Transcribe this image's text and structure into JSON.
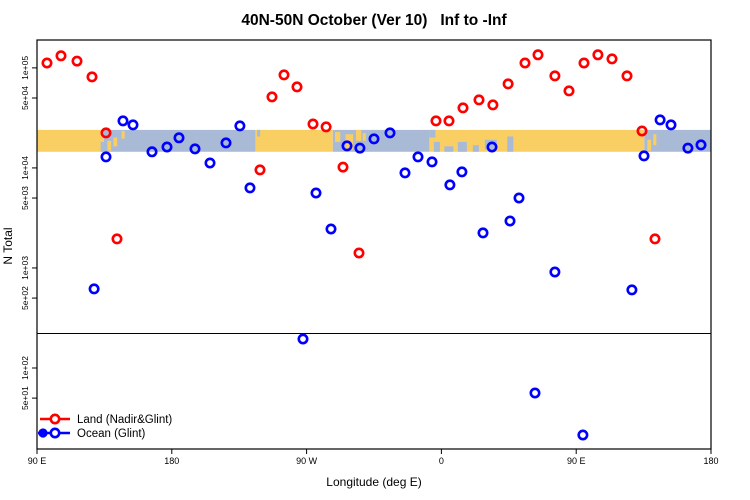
{
  "chart_data": {
    "type": "scatter",
    "title": "40N-50N October (Ver 10)   Inf to -Inf",
    "xlabel": "Longitude (deg E)",
    "ylabel": "N Total",
    "grid": false,
    "x_axis": {
      "min": 90,
      "max": 540,
      "ticks": [
        {
          "pos": 90,
          "label": "90 E"
        },
        {
          "pos": 180,
          "label": "180"
        },
        {
          "pos": 270,
          "label": "90 W"
        },
        {
          "pos": 360,
          "label": "0"
        },
        {
          "pos": 450,
          "label": "90 E"
        },
        {
          "pos": 540,
          "label": "180"
        }
      ]
    },
    "y_axis": {
      "scale": "log",
      "top_value": 190000,
      "bottom_value": 15.5,
      "ticks": [
        {
          "value": 100000,
          "label": "1e+05"
        },
        {
          "value": 50000,
          "label": "5e+04"
        },
        {
          "value": 10000,
          "label": "1e+04"
        },
        {
          "value": 5000,
          "label": "5e+03"
        },
        {
          "value": 1000,
          "label": "1e+03"
        },
        {
          "value": 500,
          "label": "5e+02"
        },
        {
          "value": 100,
          "label": "1e+02"
        },
        {
          "value": 50,
          "label": "5e+01"
        }
      ]
    },
    "hline_value": 221,
    "map_band": {
      "value_top": 24000,
      "value_bottom": 14500,
      "land_color": "#F9CF64",
      "ocean_color": "#A9BAD7",
      "segments": [
        {
          "type": "land",
          "from": 90,
          "to": 134.7
        },
        {
          "type": "ocean",
          "from": 134.7,
          "to": 236
        },
        {
          "type": "land",
          "from": 236,
          "to": 287.5
        },
        {
          "type": "ocean",
          "from": 287.5,
          "to": 352
        },
        {
          "type": "land",
          "from": 352,
          "to": 495.5
        },
        {
          "type": "ocean",
          "from": 495.5,
          "to": 540
        }
      ],
      "details": [
        {
          "type": "ocean",
          "from": 132.5,
          "to": 134.7,
          "top": 0.55,
          "bottom": 1
        },
        {
          "type": "land",
          "from": 137,
          "to": 139.5,
          "top": 0.5,
          "bottom": 0.95
        },
        {
          "type": "land",
          "from": 141,
          "to": 143.5,
          "top": 0.35,
          "bottom": 0.75
        },
        {
          "type": "land",
          "from": 146.5,
          "to": 148.5,
          "top": 0.05,
          "bottom": 0.4
        },
        {
          "type": "ocean",
          "from": 237,
          "to": 239,
          "top": 0,
          "bottom": 0.3
        },
        {
          "type": "land",
          "from": 289,
          "to": 292.5,
          "top": 0.1,
          "bottom": 0.55
        },
        {
          "type": "land",
          "from": 296,
          "to": 301,
          "top": 0.2,
          "bottom": 0.9
        },
        {
          "type": "land",
          "from": 303,
          "to": 306.5,
          "top": 0,
          "bottom": 0.5
        },
        {
          "type": "land",
          "from": 307.5,
          "to": 309.5,
          "top": 0.15,
          "bottom": 0.5
        },
        {
          "type": "ocean",
          "from": 352,
          "to": 356,
          "top": 0,
          "bottom": 0.35
        },
        {
          "type": "ocean",
          "from": 355,
          "to": 359,
          "top": 0.55,
          "bottom": 1
        },
        {
          "type": "ocean",
          "from": 362,
          "to": 368,
          "top": 0.75,
          "bottom": 1
        },
        {
          "type": "ocean",
          "from": 371,
          "to": 377,
          "top": 0.55,
          "bottom": 1
        },
        {
          "type": "ocean",
          "from": 381,
          "to": 385,
          "top": 0.7,
          "bottom": 1
        },
        {
          "type": "ocean",
          "from": 389,
          "to": 397,
          "top": 0.45,
          "bottom": 0.9
        },
        {
          "type": "ocean",
          "from": 404,
          "to": 408,
          "top": 0.3,
          "bottom": 1
        },
        {
          "type": "land",
          "from": 497.5,
          "to": 500,
          "top": 0.45,
          "bottom": 0.95
        },
        {
          "type": "land",
          "from": 501.5,
          "to": 503.5,
          "top": 0.2,
          "bottom": 0.7
        }
      ]
    },
    "series": [
      {
        "name": "Land (Nadir&Glint)",
        "color": "#FF0000",
        "points": [
          [
            96.7,
            112000
          ],
          [
            106.0,
            132000
          ],
          [
            116.7,
            117000
          ],
          [
            126.7,
            81300
          ],
          [
            136.1,
            22400
          ],
          [
            143.4,
            1950
          ],
          [
            238.9,
            9550
          ],
          [
            246.9,
            51300
          ],
          [
            254.9,
            85100
          ],
          [
            263.6,
            64600
          ],
          [
            274.3,
            27500
          ],
          [
            283.0,
            25700
          ],
          [
            294.3,
            10200
          ],
          [
            305.0,
            1410
          ],
          [
            356.4,
            29500
          ],
          [
            365.1,
            29500
          ],
          [
            374.4,
            39800
          ],
          [
            385.1,
            47900
          ],
          [
            394.4,
            42700
          ],
          [
            404.5,
            69200
          ],
          [
            415.8,
            112000
          ],
          [
            424.5,
            135000
          ],
          [
            435.8,
            83200
          ],
          [
            445.2,
            58900
          ],
          [
            455.2,
            112000
          ],
          [
            464.5,
            135000
          ],
          [
            473.9,
            123000
          ],
          [
            483.9,
            83200
          ],
          [
            493.9,
            23400
          ],
          [
            502.6,
            1950
          ]
        ]
      },
      {
        "name": "Ocean (Glint)",
        "color": "#0000FF",
        "points": [
          [
            128.1,
            617
          ],
          [
            136.1,
            12900
          ],
          [
            147.4,
            29500
          ],
          [
            154.1,
            26900
          ],
          [
            166.8,
            14500
          ],
          [
            176.8,
            16200
          ],
          [
            184.8,
            20000
          ],
          [
            195.5,
            15500
          ],
          [
            205.5,
            11200
          ],
          [
            216.2,
            17800
          ],
          [
            225.5,
            26300
          ],
          [
            232.2,
            6310
          ],
          [
            267.6,
            195
          ],
          [
            276.3,
            5620
          ],
          [
            286.3,
            2450
          ],
          [
            297.0,
            16600
          ],
          [
            305.6,
            15800
          ],
          [
            315.0,
            19500
          ],
          [
            325.7,
            22400
          ],
          [
            335.7,
            8910
          ],
          [
            344.4,
            12900
          ],
          [
            353.7,
            11500
          ],
          [
            365.7,
            6760
          ],
          [
            373.7,
            9120
          ],
          [
            387.8,
            2240
          ],
          [
            393.8,
            16200
          ],
          [
            405.8,
            2950
          ],
          [
            411.8,
            5010
          ],
          [
            422.5,
            56.2
          ],
          [
            435.8,
            912
          ],
          [
            454.5,
            21.4
          ],
          [
            487.2,
            603
          ],
          [
            495.3,
            13200
          ],
          [
            506.0,
            30200
          ],
          [
            513.3,
            26900
          ],
          [
            524.6,
            15800
          ],
          [
            533.3,
            17000
          ]
        ]
      }
    ],
    "legend": {
      "position": "bottom-left"
    }
  }
}
